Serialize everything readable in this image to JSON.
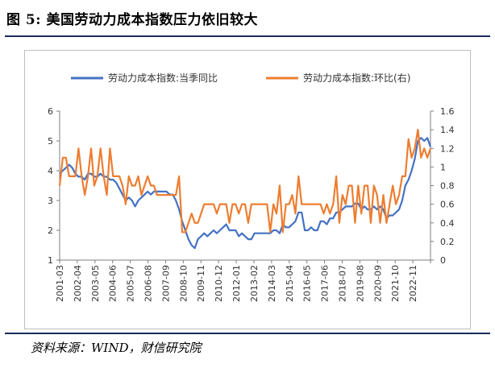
{
  "figure": {
    "title": "图 5:  美国劳动力成本指数压力依旧较大",
    "source": "资料来源：WIND，财信研究院"
  },
  "colors": {
    "series1": "#4472c4",
    "series2": "#ed7d31",
    "axis": "#7f7f7f",
    "rule": "#1b2a5c"
  },
  "chart_data": {
    "type": "line",
    "grid": false,
    "legend_position": "top",
    "x_tick_labels": [
      "2001-03",
      "2002-04",
      "2003-05",
      "2004-06",
      "2005-07",
      "2006-08",
      "2007-09",
      "2008-10",
      "2009-11",
      "2010-12",
      "2012-01",
      "2013-02",
      "2014-03",
      "2015-04",
      "2016-05",
      "2017-06",
      "2018-07",
      "2019-08",
      "2020-09",
      "2021-10",
      "2022-11"
    ],
    "y_left": {
      "range": [
        1,
        6
      ],
      "ticks": [
        "1",
        "2",
        "3",
        "4",
        "5",
        "6"
      ]
    },
    "y_right": {
      "range": [
        0,
        1.6
      ],
      "ticks": [
        "0",
        "0.2",
        "0.4",
        "0.6",
        "0.8",
        "1",
        "1.2",
        "1.4",
        "1.6"
      ]
    },
    "series": [
      {
        "name": "劳动力成本指数:当季同比",
        "axis": "left",
        "values": [
          3.9,
          4.0,
          4.1,
          4.2,
          4.1,
          3.9,
          3.8,
          3.8,
          3.7,
          3.9,
          3.9,
          3.8,
          3.8,
          3.9,
          3.8,
          3.8,
          3.7,
          3.7,
          3.6,
          3.4,
          3.2,
          3.0,
          3.1,
          3.0,
          2.8,
          3.0,
          3.1,
          3.2,
          3.3,
          3.2,
          3.3,
          3.3,
          3.3,
          3.3,
          3.3,
          3.2,
          3.2,
          3.0,
          2.7,
          2.3,
          2.0,
          1.7,
          1.5,
          1.4,
          1.7,
          1.8,
          1.9,
          1.8,
          1.9,
          2.0,
          1.9,
          2.0,
          2.1,
          2.2,
          2.0,
          2.0,
          2.0,
          1.8,
          1.9,
          1.8,
          1.7,
          1.7,
          1.9,
          1.9,
          1.9,
          1.9,
          1.9,
          1.9,
          2.0,
          2.0,
          1.9,
          2.2,
          2.1,
          2.1,
          2.2,
          2.3,
          2.6,
          2.6,
          2.0,
          2.0,
          2.1,
          2.0,
          2.0,
          2.3,
          2.3,
          2.2,
          2.4,
          2.4,
          2.6,
          2.6,
          2.7,
          2.8,
          2.8,
          2.8,
          2.9,
          2.9,
          2.7,
          2.8,
          2.7,
          2.7,
          2.8,
          2.7,
          2.8,
          2.7,
          2.4,
          2.5,
          2.5,
          2.6,
          2.7,
          3.0,
          3.5,
          3.7,
          4.0,
          4.4,
          5.0,
          5.1,
          5.0,
          5.1,
          4.8
        ]
      },
      {
        "name": "劳动力成本指数:环比(右)",
        "axis": "right",
        "values": [
          0.8,
          1.1,
          1.1,
          0.9,
          0.9,
          0.9,
          1.2,
          0.9,
          0.7,
          0.9,
          1.2,
          0.8,
          0.9,
          1.2,
          0.9,
          0.7,
          1.2,
          0.9,
          0.9,
          0.9,
          0.8,
          0.6,
          0.9,
          0.8,
          0.8,
          0.9,
          0.7,
          0.8,
          0.9,
          0.8,
          0.8,
          0.7,
          0.7,
          0.7,
          0.7,
          0.7,
          0.7,
          0.7,
          0.9,
          0.3,
          0.3,
          0.4,
          0.5,
          0.4,
          0.4,
          0.5,
          0.6,
          0.6,
          0.6,
          0.6,
          0.5,
          0.6,
          0.6,
          0.6,
          0.4,
          0.6,
          0.6,
          0.5,
          0.6,
          0.6,
          0.4,
          0.6,
          0.6,
          0.6,
          0.6,
          0.6,
          0.6,
          0.3,
          0.6,
          0.5,
          0.8,
          0.3,
          0.6,
          0.6,
          0.7,
          0.5,
          0.9,
          0.6,
          0.6,
          0.6,
          0.6,
          0.6,
          0.6,
          0.6,
          0.5,
          0.6,
          0.5,
          0.6,
          0.9,
          0.4,
          0.7,
          0.6,
          0.8,
          0.8,
          0.4,
          0.8,
          0.5,
          0.8,
          0.8,
          0.4,
          0.8,
          0.7,
          0.4,
          0.7,
          0.4,
          0.6,
          0.8,
          0.6,
          0.7,
          0.9,
          0.9,
          1.3,
          1.1,
          1.2,
          1.4,
          1.1,
          1.2,
          1.1,
          1.2
        ]
      }
    ]
  }
}
